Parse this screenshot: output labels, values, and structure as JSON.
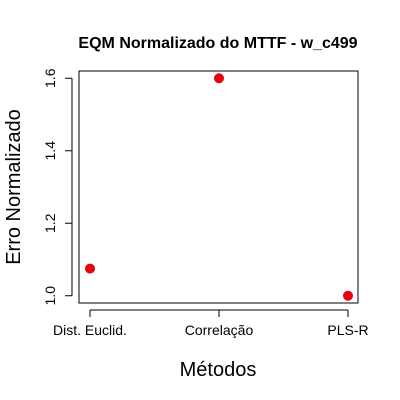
{
  "chart_data": {
    "type": "scatter",
    "title": "EQM Normalizado do MTTF - w_c499",
    "xlabel": "Métodos",
    "ylabel": "Erro Normalizado",
    "categories": [
      "Dist. Euclid.",
      "Correlação",
      "PLS-R"
    ],
    "values": [
      1.075,
      1.6,
      1.0
    ],
    "ylim": [
      0.98,
      1.62
    ],
    "yticks": [
      "1.0",
      "1.2",
      "1.4",
      "1.6"
    ],
    "point_color": "#e8000b",
    "grid": false
  }
}
